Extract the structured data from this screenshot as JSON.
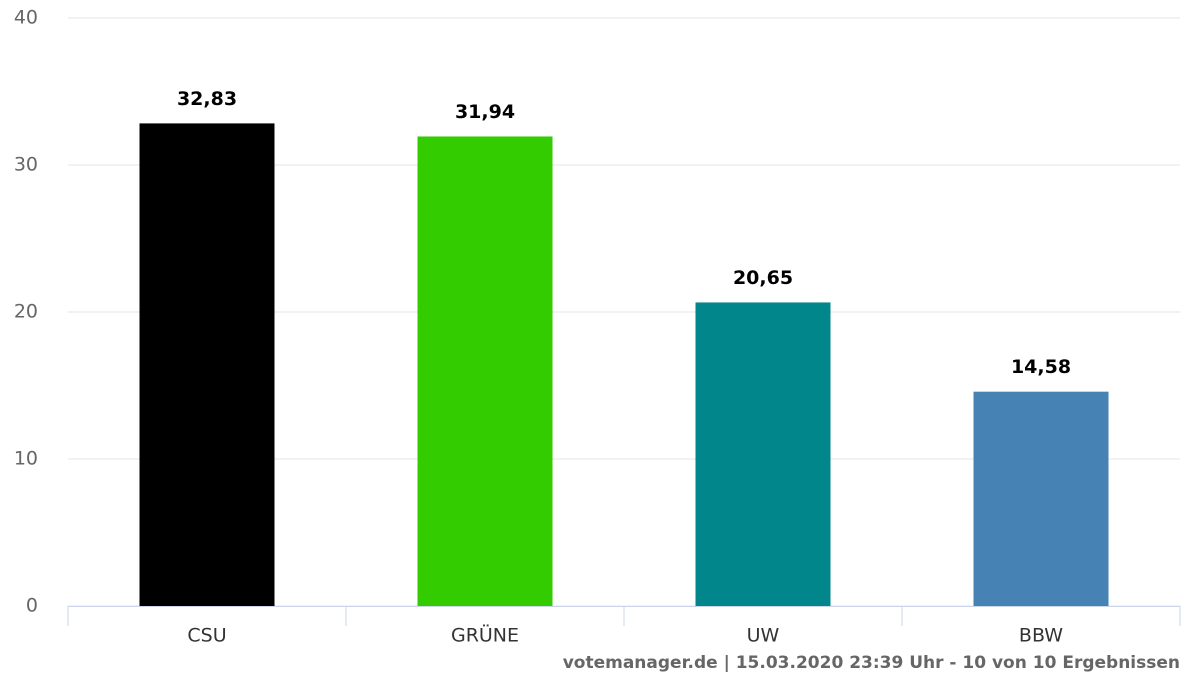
{
  "chart_data": {
    "type": "bar",
    "categories": [
      "CSU",
      "GRÜNE",
      "UW",
      "BBW"
    ],
    "values": [
      32.83,
      31.94,
      20.65,
      14.58
    ],
    "value_labels": [
      "32,83",
      "31,94",
      "20,65",
      "14,58"
    ],
    "colors": [
      "#000000",
      "#33cc00",
      "#00868b",
      "#4682b4"
    ],
    "ylim": [
      0,
      40
    ],
    "yticks": [
      0,
      10,
      20,
      30,
      40
    ],
    "grid": true,
    "credits": "votemanager.de | 15.03.2020 23:39 Uhr - 10 von 10 Ergebnissen"
  }
}
